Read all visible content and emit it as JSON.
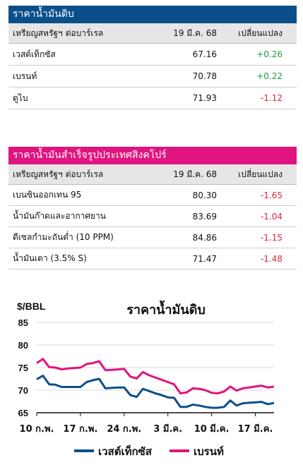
{
  "crude": {
    "title": "ราคาน้ำมันดิบ",
    "headers": [
      "เหรียญสหรัฐฯ ต่อบาร์เรล",
      "19 มี.ค. 68",
      "เปลี่ยนแปลง"
    ],
    "rows": [
      {
        "name": "เวสต์เท็กซัส",
        "price": "67.16",
        "change": "+0.26",
        "dir": "pos"
      },
      {
        "name": "เบรนท์",
        "price": "70.78",
        "change": "+0.22",
        "dir": "pos"
      },
      {
        "name": "ดูไบ",
        "price": "71.93",
        "change": "-1.12",
        "dir": "neg"
      }
    ]
  },
  "refined": {
    "title": "ราคาน้ำมันสำเร็จรูปประเทศสิงคโปร์",
    "headers": [
      "เหรียญสหรัฐฯ ต่อบาร์เรล",
      "19 มี.ค. 68",
      "เปลี่ยนแปลง"
    ],
    "rows": [
      {
        "name": "เบนซินออกเทน 95",
        "price": "80.30",
        "change": "-1.65",
        "dir": "neg"
      },
      {
        "name": "น้ำมันก๊าดและอากาศยาน",
        "price": "83.69",
        "change": "-1.04",
        "dir": "neg"
      },
      {
        "name": "ดีเซลกำมะถันต่ำ (10 PPM)",
        "price": "84.86",
        "change": "-1.15",
        "dir": "neg"
      },
      {
        "name": "น้ำมันเตา (3.5% S)",
        "price": "71.47",
        "change": "-1.48",
        "dir": "neg"
      }
    ]
  },
  "colors": {
    "wti": "#0a4f8a",
    "brent": "#e0147f",
    "pos": "#1e9e3a",
    "neg": "#e0253a"
  },
  "chart_data": {
    "type": "line",
    "title": "ราคาน้ำมันดิบ",
    "ylabel": "$/BBL",
    "ylim": [
      65,
      85
    ],
    "yticks": [
      65,
      70,
      75,
      80,
      85
    ],
    "x": [
      0,
      1,
      2,
      3,
      4,
      5,
      6,
      7,
      8,
      9,
      10,
      11,
      12,
      13,
      14,
      15,
      16,
      17,
      18,
      19,
      20,
      21,
      22,
      23,
      24,
      25,
      26,
      27,
      28,
      29,
      30,
      31,
      32,
      33,
      34,
      35,
      36,
      37,
      38
    ],
    "xtick_positions": [
      0,
      7,
      14,
      21,
      28,
      35
    ],
    "xtick_labels": [
      "10 ก.พ.",
      "17 ก.พ.",
      "24 ก.พ.",
      "3 มี.ค.",
      "10 มี.ค.",
      "17 มี.ค."
    ],
    "grid": "horizontal",
    "legend_position": "bottom",
    "series": [
      {
        "name": "เวสต์เท็กซัส",
        "color": "#0a4f8a",
        "values": [
          72.4,
          73.2,
          71.3,
          71.2,
          70.7,
          70.7,
          70.7,
          70.7,
          71.8,
          72.2,
          72.5,
          70.4,
          70.5,
          70.6,
          70.6,
          68.9,
          68.5,
          70.3,
          69.8,
          69.3,
          68.9,
          68.4,
          68.3,
          66.3,
          66.3,
          66.8,
          66.6,
          66.3,
          66.1,
          66.1,
          66.3,
          67.7,
          66.6,
          67.1,
          67.2,
          67.3,
          67.4,
          66.9,
          67.16
        ]
      },
      {
        "name": "เบรนท์",
        "color": "#e0147f",
        "values": [
          76.0,
          76.9,
          75.1,
          75.0,
          74.6,
          74.8,
          74.9,
          75.0,
          75.8,
          76.0,
          76.4,
          74.4,
          74.5,
          74.6,
          74.7,
          73.0,
          72.6,
          74.0,
          73.3,
          72.8,
          72.3,
          71.8,
          71.3,
          69.3,
          69.5,
          70.4,
          70.3,
          70.0,
          69.4,
          69.3,
          69.7,
          70.8,
          69.9,
          70.4,
          70.6,
          70.8,
          71.0,
          70.6,
          70.78
        ]
      }
    ]
  }
}
